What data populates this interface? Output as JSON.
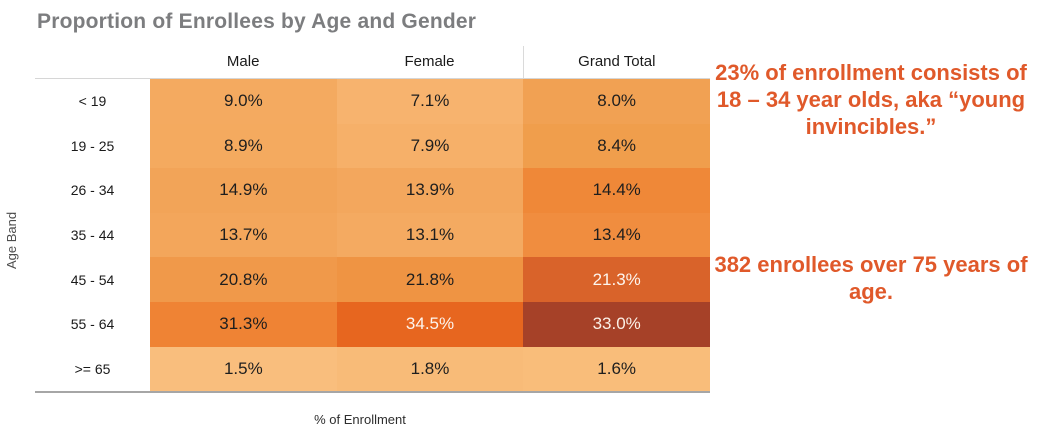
{
  "title": "Proportion of Enrollees by Age and Gender",
  "table": {
    "row_axis_label": "Age Band",
    "x_axis_label": "% of Enrollment",
    "columns": [
      "Male",
      "Female",
      "Grand Total"
    ],
    "rows": [
      {
        "label": "< 19",
        "cells": [
          {
            "value": "9.0%",
            "bg": "#F4AA60",
            "fg": "#1E1E1E"
          },
          {
            "value": "7.1%",
            "bg": "#F7B36E",
            "fg": "#1E1E1E"
          },
          {
            "value": "8.0%",
            "bg": "#F1A153",
            "fg": "#1E1E1E"
          }
        ]
      },
      {
        "label": "19 - 25",
        "cells": [
          {
            "value": "8.9%",
            "bg": "#F4AA5F",
            "fg": "#1E1E1E"
          },
          {
            "value": "7.9%",
            "bg": "#F6B069",
            "fg": "#1E1E1E"
          },
          {
            "value": "8.4%",
            "bg": "#F09E4C",
            "fg": "#1E1E1E"
          }
        ]
      },
      {
        "label": "26 - 34",
        "cells": [
          {
            "value": "14.9%",
            "bg": "#F2A458",
            "fg": "#1E1E1E"
          },
          {
            "value": "13.9%",
            "bg": "#F3A75D",
            "fg": "#1E1E1E"
          },
          {
            "value": "14.4%",
            "bg": "#EF8838",
            "fg": "#1E1E1E"
          }
        ]
      },
      {
        "label": "35 - 44",
        "cells": [
          {
            "value": "13.7%",
            "bg": "#F3A65B",
            "fg": "#1E1E1E"
          },
          {
            "value": "13.1%",
            "bg": "#F4AA61",
            "fg": "#1E1E1E"
          },
          {
            "value": "13.4%",
            "bg": "#F08D3F",
            "fg": "#1E1E1E"
          }
        ]
      },
      {
        "label": "45 - 54",
        "cells": [
          {
            "value": "20.8%",
            "bg": "#F0994A",
            "fg": "#1E1E1E"
          },
          {
            "value": "21.8%",
            "bg": "#EF9443",
            "fg": "#1E1E1E"
          },
          {
            "value": "21.3%",
            "bg": "#D9632A",
            "fg": "#FDF5EE"
          }
        ]
      },
      {
        "label": "55 - 64",
        "cells": [
          {
            "value": "31.3%",
            "bg": "#EF8334",
            "fg": "#1E1E1E"
          },
          {
            "value": "34.5%",
            "bg": "#E7661F",
            "fg": "#FDF5EE"
          },
          {
            "value": "33.0%",
            "bg": "#A64128",
            "fg": "#FBF0E7"
          }
        ]
      },
      {
        "label": ">= 65",
        "cells": [
          {
            "value": "1.5%",
            "bg": "#F9BE7D",
            "fg": "#1E1E1E"
          },
          {
            "value": "1.8%",
            "bg": "#F8BB78",
            "fg": "#1E1E1E"
          },
          {
            "value": "1.6%",
            "bg": "#F9BD7A",
            "fg": "#1E1E1E"
          }
        ]
      }
    ]
  },
  "annotations": [
    {
      "text": "23% of enrollment consists of 18 – 34 year olds, aka “young invincibles.”"
    },
    {
      "text": "382 enrollees over 75 years of age."
    }
  ],
  "colors": {
    "annotation_accent": "#E0592A",
    "title_gray": "#7C7D7F",
    "heat_low": "#F9BE7D",
    "heat_high": "#A64128"
  },
  "chart_data": {
    "type": "heatmap",
    "title": "Proportion of Enrollees by Age and Gender",
    "ylabel": "Age Band",
    "value_label": "% of Enrollment",
    "rows": [
      "< 19",
      "19 - 25",
      "26 - 34",
      "35 - 44",
      "45 - 54",
      "55 - 64",
      ">= 65"
    ],
    "columns": [
      "Male",
      "Female",
      "Grand Total"
    ],
    "values_pct": [
      [
        9.0,
        7.1,
        8.0
      ],
      [
        8.9,
        7.9,
        8.4
      ],
      [
        14.9,
        13.9,
        14.4
      ],
      [
        13.7,
        13.1,
        13.4
      ],
      [
        20.8,
        21.8,
        21.3
      ],
      [
        31.3,
        34.5,
        33.0
      ],
      [
        1.5,
        1.8,
        1.6
      ]
    ],
    "legend_position": "none",
    "grid": false,
    "annotations": [
      "23% of enrollment consists of 18 – 34 year olds, aka “young invincibles.”",
      "382 enrollees over 75 years of age."
    ]
  }
}
